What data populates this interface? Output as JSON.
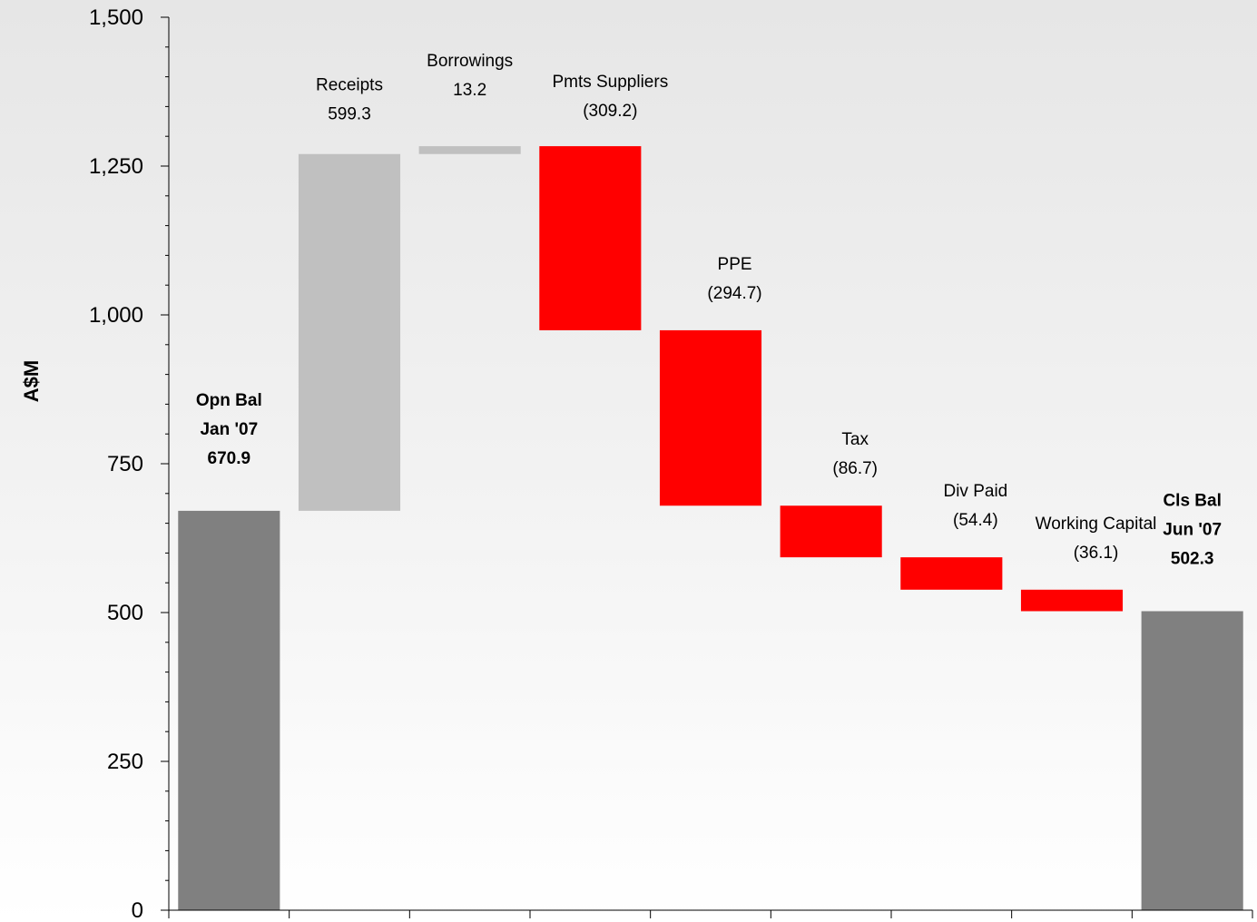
{
  "chart_data": {
    "type": "waterfall",
    "ylabel": "A$M",
    "ylim": [
      0,
      1500
    ],
    "yticks": [
      0,
      250,
      500,
      750,
      1000,
      1250,
      1500
    ],
    "ytick_labels": [
      "0",
      "250",
      "500",
      "750",
      "1,000",
      "1,250",
      "1,500"
    ],
    "grid": false,
    "colors": {
      "balance": "#808080",
      "increase": "#c0c0c0",
      "decrease": "#ff0000"
    },
    "bars": [
      {
        "label_lines": [
          "Opn Bal",
          "Jan '07",
          "670.9"
        ],
        "kind": "balance",
        "start": 0,
        "end": 670.9,
        "bold": true
      },
      {
        "label_lines": [
          "Receipts",
          "599.3"
        ],
        "kind": "increase",
        "start": 670.9,
        "end": 1270.2,
        "bold": false
      },
      {
        "label_lines": [
          "Borrowings",
          "13.2"
        ],
        "kind": "increase",
        "start": 1270.2,
        "end": 1283.4,
        "bold": false
      },
      {
        "label_lines": [
          "Pmts Suppliers",
          "(309.2)"
        ],
        "kind": "decrease",
        "start": 1283.4,
        "end": 974.2,
        "bold": false
      },
      {
        "label_lines": [
          "PPE",
          "(294.7)"
        ],
        "kind": "decrease",
        "start": 974.2,
        "end": 679.5,
        "bold": false
      },
      {
        "label_lines": [
          "Tax",
          "(86.7)"
        ],
        "kind": "decrease",
        "start": 679.5,
        "end": 592.8,
        "bold": false
      },
      {
        "label_lines": [
          "Div Paid",
          "(54.4)"
        ],
        "kind": "decrease",
        "start": 592.8,
        "end": 538.4,
        "bold": false
      },
      {
        "label_lines": [
          "Working Capital",
          "(36.1)"
        ],
        "kind": "decrease",
        "start": 538.4,
        "end": 502.3,
        "bold": false
      },
      {
        "label_lines": [
          "Cls Bal",
          "Jun '07",
          "502.3"
        ],
        "kind": "balance",
        "start": 0,
        "end": 502.3,
        "bold": true
      }
    ]
  }
}
